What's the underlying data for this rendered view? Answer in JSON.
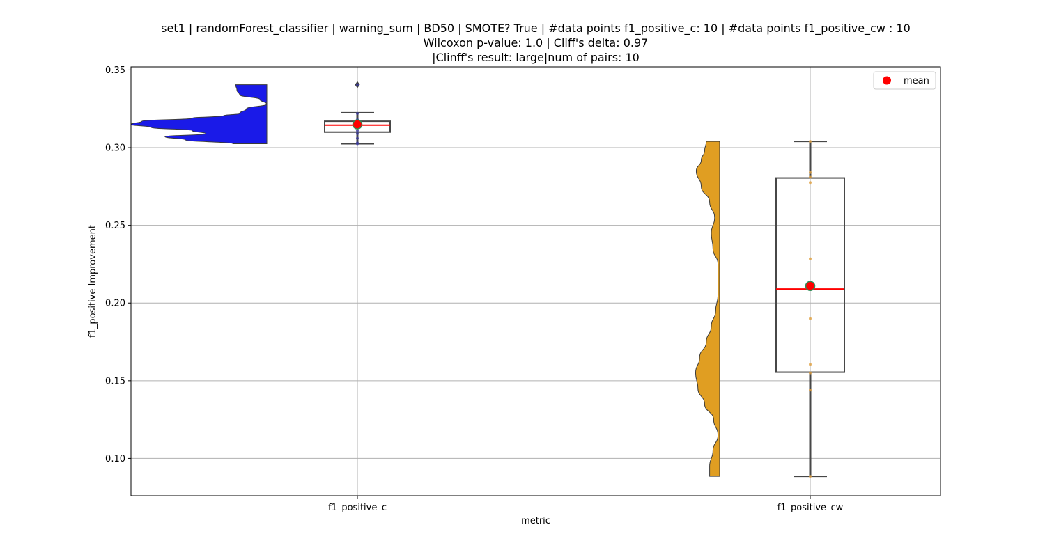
{
  "chart_data": {
    "type": "violin-box",
    "title_lines": [
      "set1 | randomForest_classifier | warning_sum | BD50 | SMOTE? True | #data points f1_positive_c: 10 | #data points f1_positive_cw : 10",
      "Wilcoxon p-value: 1.0 | Cliff's delta: 0.97",
      "|Clinff's result: large|num of pairs: 10"
    ],
    "xlabel": "metric",
    "ylabel": "f1_positive Improvement",
    "ylim": [
      0.076,
      0.352
    ],
    "yticks": [
      "0.10",
      "0.15",
      "0.20",
      "0.25",
      "0.30",
      "0.35"
    ],
    "grid": true,
    "legend": {
      "placement": "top-right",
      "entries": [
        {
          "label": "mean",
          "marker": "red-circle"
        }
      ]
    },
    "colors": {
      "violin_c": "#1a1ae8",
      "violin_cw": "#e09e22",
      "median": "#ff0000",
      "mean": "#ff0000",
      "mean_edge": "#2e8b57",
      "box_edge": "#474747",
      "grid": "#b0b0b0"
    },
    "categories": [
      "f1_positive_c",
      "f1_positive_cw"
    ],
    "series": [
      {
        "name": "f1_positive_c",
        "points": [
          0.3025,
          0.303,
          0.306,
          0.309,
          0.311,
          0.3145,
          0.316,
          0.318,
          0.322,
          0.3405
        ],
        "box": {
          "whisker_low": 0.3025,
          "q1": 0.31,
          "median": 0.3145,
          "q3": 0.317,
          "whisker_high": 0.3225,
          "outliers": [
            0.3405
          ]
        },
        "mean": 0.315,
        "violin": {
          "y": [
            0.3025,
            0.305,
            0.307,
            0.309,
            0.311,
            0.313,
            0.315,
            0.317,
            0.319,
            0.3205,
            0.322,
            0.325,
            0.328,
            0.331,
            0.334,
            0.337,
            0.3405
          ],
          "density": [
            0.25,
            0.6,
            0.75,
            0.45,
            0.55,
            0.85,
            1.0,
            0.92,
            0.55,
            0.32,
            0.2,
            0.15,
            0.0,
            0.05,
            0.2,
            0.22,
            0.23
          ]
        }
      },
      {
        "name": "f1_positive_cw",
        "points": [
          0.0885,
          0.144,
          0.155,
          0.1605,
          0.19,
          0.2285,
          0.2775,
          0.281,
          0.284,
          0.304
        ],
        "box": {
          "whisker_low": 0.0885,
          "q1": 0.1555,
          "median": 0.209,
          "q3": 0.2805,
          "whisker_high": 0.304,
          "outliers": []
        },
        "mean": 0.211,
        "violin": {
          "y": [
            0.0885,
            0.095,
            0.105,
            0.115,
            0.125,
            0.135,
            0.145,
            0.155,
            0.165,
            0.175,
            0.185,
            0.195,
            0.205,
            0.215,
            0.225,
            0.235,
            0.245,
            0.255,
            0.265,
            0.275,
            0.285,
            0.292,
            0.298,
            0.304
          ],
          "density": [
            0.3,
            0.3,
            0.2,
            0.05,
            0.18,
            0.45,
            0.65,
            0.72,
            0.6,
            0.4,
            0.25,
            0.12,
            0.05,
            0.05,
            0.05,
            0.2,
            0.25,
            0.15,
            0.3,
            0.55,
            0.7,
            0.55,
            0.45,
            0.4
          ]
        }
      }
    ]
  }
}
